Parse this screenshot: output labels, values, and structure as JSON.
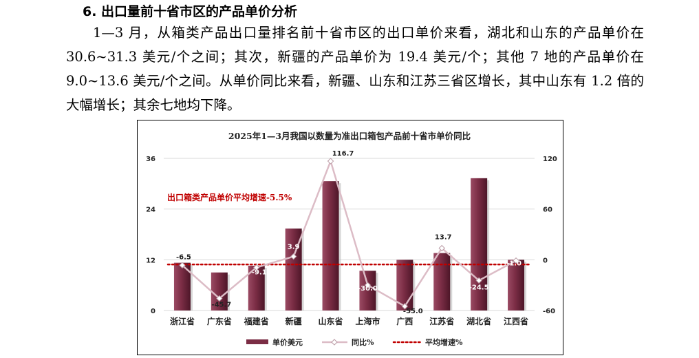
{
  "section_heading": "6. 出口量前十省市区的产品单价分析",
  "paragraph": "1—3 月，从箱类产品出口量排名前十省市区的出口单价来看，湖北和山东的产品单价在 30.6~31.3 美元/个之间；其次，新疆的产品单价为 19.4 美元/个；其他 7 地的产品单价在 9.0~13.6 美元/个之间。从单价同比来看，新疆、山东和江苏三省区增长，其中山东有 1.2 倍的大幅增长；其余七地均下降。",
  "chart_data": {
    "type": "bar",
    "title": "2025年1—3月我国以数量为准出口箱包产品前十省市单价同比",
    "categories": [
      "浙江省",
      "广东省",
      "福建省",
      "新疆",
      "山东省",
      "上海市",
      "广西",
      "江苏省",
      "湖北省",
      "江西省"
    ],
    "series": [
      {
        "name": "单价美元",
        "type": "bar",
        "axis": "left",
        "color": "#7b2d45",
        "values": [
          11.3,
          9.0,
          10.6,
          19.4,
          30.6,
          9.4,
          12.0,
          13.6,
          31.3,
          12.0
        ]
      },
      {
        "name": "同比%",
        "type": "line",
        "axis": "right",
        "color": "#dcbcc6",
        "values": [
          -6.5,
          -45.7,
          -9.1,
          3.9,
          116.7,
          -30.0,
          -55.0,
          13.7,
          -24.5,
          -1.0
        ],
        "labels": [
          "-6.5",
          "-45.7",
          "-9.1",
          "3.9",
          "116.7",
          "-30.0",
          "-55.0",
          "13.7",
          "-24.5",
          "-1.0"
        ]
      },
      {
        "name": "平均增速%",
        "type": "line",
        "style": "dotted",
        "axis": "right",
        "color": "#c00000",
        "value": -5.5
      }
    ],
    "y_left": {
      "ticks": [
        "0",
        "12",
        "24",
        "36"
      ],
      "lim": [
        0,
        36
      ]
    },
    "y_right": {
      "ticks": [
        "-60",
        "0",
        "60",
        "120"
      ],
      "lim": [
        -60,
        120
      ]
    },
    "annotation": "出口箱类产品单价平均增速-5.5%",
    "grid": "horizontal",
    "legend_position": "bottom"
  }
}
